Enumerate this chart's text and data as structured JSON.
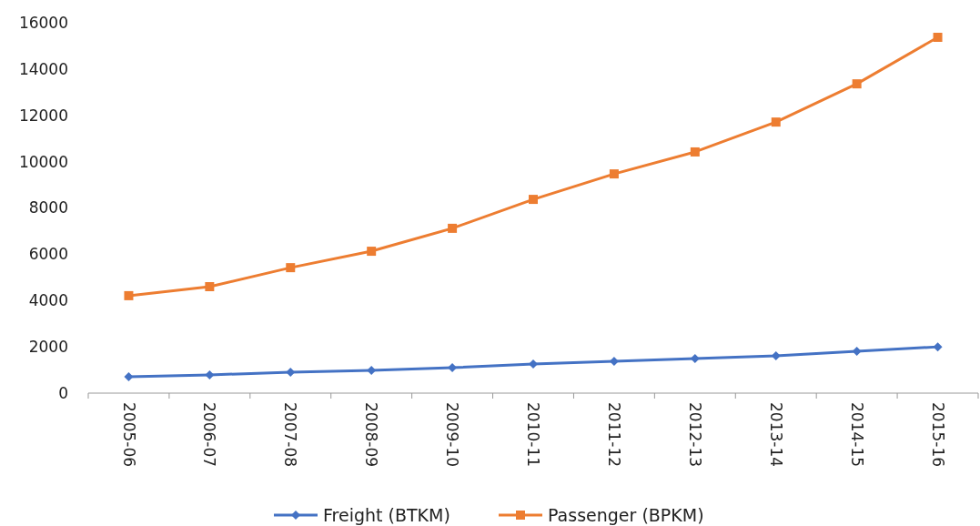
{
  "chart_data": {
    "type": "line",
    "categories": [
      "2005-06",
      "2006-07",
      "2007-08",
      "2008-09",
      "2009-10",
      "2010-11",
      "2011-12",
      "2012-13",
      "2013-14",
      "2014-15",
      "2015-16"
    ],
    "series": [
      {
        "name": "Freight (BTKM)",
        "color": "#4472c4",
        "marker": "diamond",
        "values": [
          710,
          790,
          900,
          980,
          1100,
          1260,
          1380,
          1490,
          1610,
          1810,
          2000
        ]
      },
      {
        "name": "Passenger (BPKM)",
        "color": "#ed7d31",
        "marker": "square",
        "values": [
          4210,
          4600,
          5420,
          6130,
          7120,
          8370,
          9470,
          10420,
          11710,
          13360,
          15370
        ]
      }
    ],
    "ylim": [
      0,
      16000
    ],
    "yticks": [
      0,
      2000,
      4000,
      6000,
      8000,
      10000,
      12000,
      14000,
      16000
    ],
    "grid": false,
    "legend": "bottom"
  }
}
